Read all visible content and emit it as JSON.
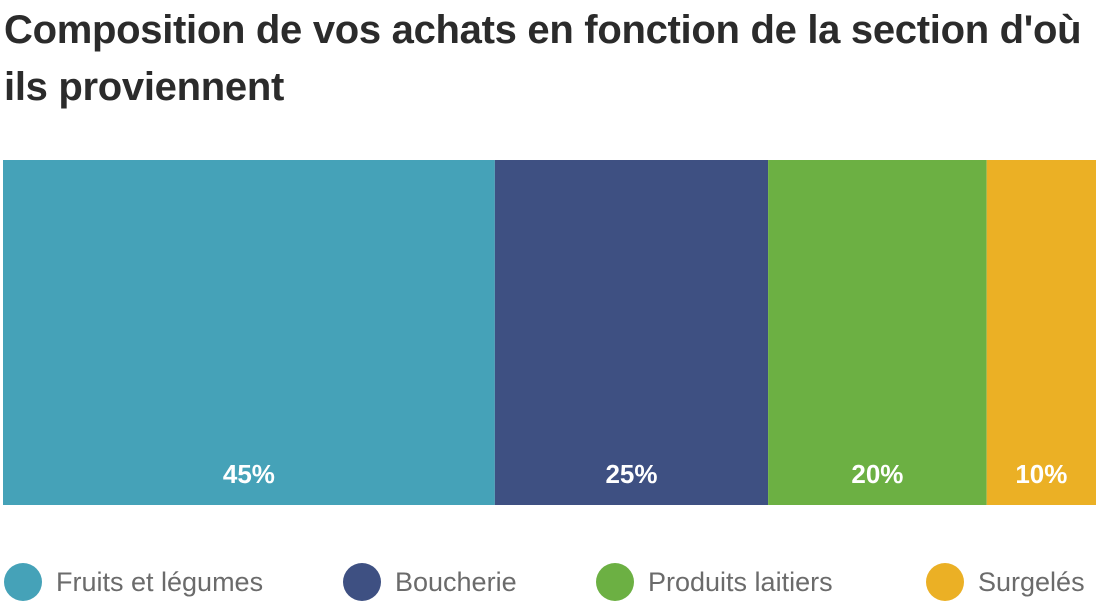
{
  "title": "Composition de vos achats en fonction de la section d'où ils proviennent",
  "colors": {
    "fruits": "#45A2B8",
    "boucherie": "#3E5082",
    "laitiers": "#6CB043",
    "surgeles": "#EBB025"
  },
  "chart_data": {
    "type": "bar",
    "orientation": "horizontal",
    "stacked": true,
    "unit": "%",
    "title": "Composition de vos achats en fonction de la section d'où ils proviennent",
    "series": [
      {
        "name": "Fruits et légumes",
        "value": 45,
        "label": "45%",
        "color": "#45A2B8"
      },
      {
        "name": "Boucherie",
        "value": 25,
        "label": "25%",
        "color": "#3E5082"
      },
      {
        "name": "Produits laitiers",
        "value": 20,
        "label": "20%",
        "color": "#6CB043"
      },
      {
        "name": "Surgelés",
        "value": 10,
        "label": "10%",
        "color": "#EBB025"
      }
    ],
    "legend": "bottom",
    "grid": false
  },
  "legend": {
    "items": [
      {
        "label": "Fruits et légumes",
        "color": "#45A2B8",
        "icon": "circle-icon"
      },
      {
        "label": "Boucherie",
        "color": "#3E5082",
        "icon": "circle-icon"
      },
      {
        "label": "Produits laitiers",
        "color": "#6CB043",
        "icon": "circle-icon"
      },
      {
        "label": "Surgelés",
        "color": "#EBB025",
        "icon": "circle-icon"
      }
    ]
  }
}
